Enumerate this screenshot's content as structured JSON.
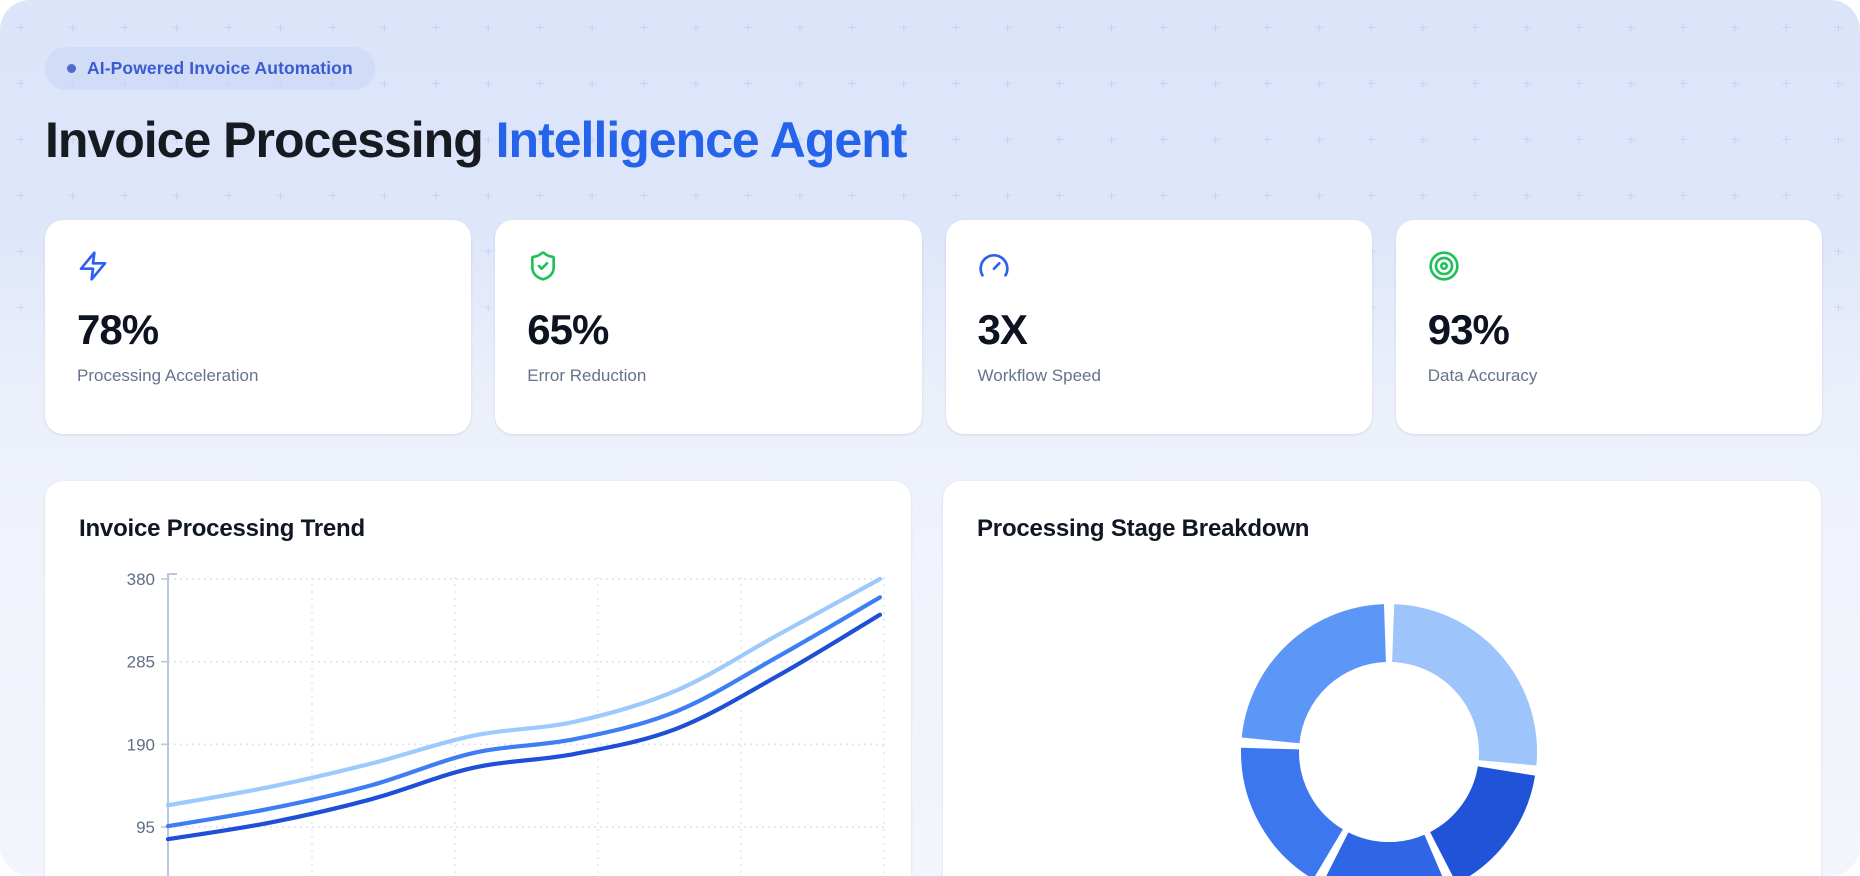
{
  "badge": {
    "label": "AI-Powered Invoice Automation"
  },
  "title": {
    "primary": "Invoice Processing",
    "accent": "Intelligence Agent"
  },
  "stats": [
    {
      "value": "78%",
      "label": "Processing Acceleration",
      "icon": "lightning-icon",
      "icon_color": "#2e5ff0"
    },
    {
      "value": "65%",
      "label": "Error Reduction",
      "icon": "shield-check-icon",
      "icon_color": "#21c05b"
    },
    {
      "value": "3X",
      "label": "Workflow Speed",
      "icon": "gauge-icon",
      "icon_color": "#2e5ff0"
    },
    {
      "value": "93%",
      "label": "Data Accuracy",
      "icon": "target-icon",
      "icon_color": "#21c05b"
    }
  ],
  "chart_data": [
    {
      "type": "line",
      "title": "Invoice Processing Trend",
      "x": [
        1,
        2,
        3,
        4,
        5,
        6,
        7,
        8
      ],
      "xlabel": "",
      "ylabel": "",
      "yticks": [
        95,
        190,
        285,
        380
      ],
      "ylim": [
        45,
        385
      ],
      "grid": "dashed",
      "legend": "none",
      "x_axis_labels_visible": false,
      "series": [
        {
          "name": "light-series",
          "color": "#9ec9fc",
          "values": [
            120,
            141,
            168,
            200,
            216,
            252,
            316,
            380
          ]
        },
        {
          "name": "medium-series",
          "color": "#3e7ef4",
          "values": [
            96,
            116,
            143,
            180,
            196,
            228,
            291,
            359
          ]
        },
        {
          "name": "dark-series",
          "color": "#1d4fd7",
          "values": [
            81,
            100,
            127,
            163,
            179,
            208,
            269,
            339
          ]
        }
      ]
    },
    {
      "type": "donut",
      "title": "Processing Stage Breakdown",
      "legend": "none",
      "start_angle_deg": 0,
      "gap_deg": 4,
      "segments": [
        {
          "name": "segment-1",
          "color": "#9dc4fb",
          "percent": 27
        },
        {
          "name": "segment-2",
          "color": "#2153d8",
          "percent": 16
        },
        {
          "name": "segment-3",
          "color": "#2e66e6",
          "percent": 15
        },
        {
          "name": "segment-4",
          "color": "#3d77ef",
          "percent": 18
        },
        {
          "name": "segment-5",
          "color": "#5c97f7",
          "percent": 24
        }
      ]
    }
  ],
  "colors": {
    "accent": "#2563eb",
    "hero_bg": "#dbe4f9",
    "card_bg": "#ffffff"
  }
}
